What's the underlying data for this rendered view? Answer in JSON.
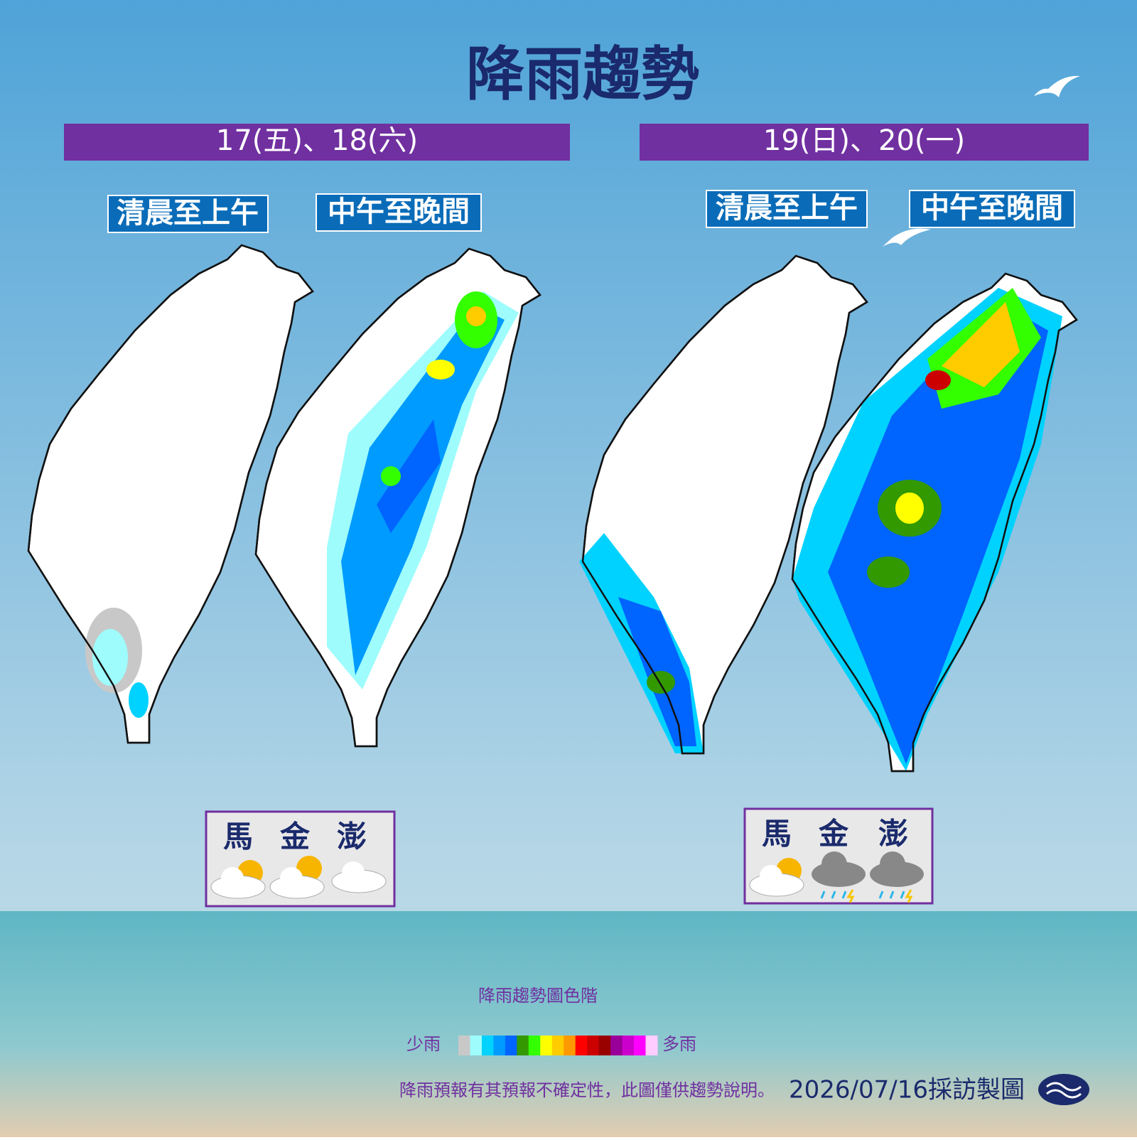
{
  "header": {
    "title": "降雨趨勢"
  },
  "panels": [
    {
      "date": "17(五)、18(六)",
      "periods": [
        "清晨至上午",
        "中午至晚間"
      ],
      "islands": [
        "馬",
        "金",
        "澎"
      ]
    },
    {
      "date": "19(日)、20(一)",
      "periods": [
        "清晨至上午",
        "中午至晚間"
      ],
      "islands": [
        "馬",
        "金",
        "澎"
      ]
    }
  ],
  "legend": {
    "title": "降雨趨勢圖色階",
    "low": "少雨",
    "high": "多雨",
    "colors": [
      "#c8c8c8",
      "#9efcfc",
      "#00d2ff",
      "#009bff",
      "#0064ff",
      "#339900",
      "#33ff00",
      "#ffff00",
      "#ffcc00",
      "#ff9900",
      "#ff0000",
      "#cc0000",
      "#990000",
      "#990099",
      "#cc00cc",
      "#ff00ff",
      "#ffccff"
    ]
  },
  "footer": {
    "note": "降雨預報有其預報不確定性，此圖僅供趨勢說明。",
    "credit": "2026/07/16採訪製圖"
  }
}
